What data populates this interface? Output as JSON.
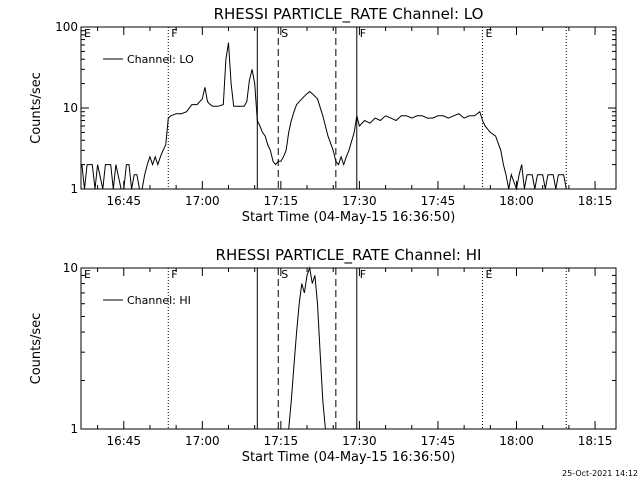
{
  "footer": {
    "timestamp": "25-Oct-2021 14:12"
  },
  "chart_data": [
    {
      "type": "line",
      "title": "RHESSI PARTICLE_RATE Channel: LO",
      "xlabel": "Start Time (04-May-15 16:36:50)",
      "ylabel": "Counts/sec",
      "y_scale": "log",
      "ylim": [
        1,
        100
      ],
      "y_ticks": [
        "1",
        "10",
        "100"
      ],
      "xlim": [
        "16:36:50",
        "18:19:00"
      ],
      "x_ticks": [
        "16:45",
        "17:00",
        "17:15",
        "17:30",
        "17:45",
        "18:00",
        "18:15"
      ],
      "legend": {
        "placement": "top-left",
        "entries": [
          "Channel: LO"
        ]
      },
      "markers": [
        {
          "time": "16:36:50",
          "label": "E",
          "style": "solid"
        },
        {
          "time": "16:53:30",
          "label": "F",
          "style": "dotted"
        },
        {
          "time": "17:10:30",
          "label": "",
          "style": "solid"
        },
        {
          "time": "17:14:30",
          "label": "S",
          "style": "dashed"
        },
        {
          "time": "17:25:30",
          "label": "",
          "style": "dashed"
        },
        {
          "time": "17:29:30",
          "label": "F",
          "style": "solid"
        },
        {
          "time": "17:53:30",
          "label": "E",
          "style": "dotted"
        },
        {
          "time": "18:09:30",
          "label": "",
          "style": "dotted"
        }
      ],
      "series": [
        {
          "name": "Channel: LO",
          "points": [
            [
              "16:37:00",
              2
            ],
            [
              "16:37:30",
              1
            ],
            [
              "16:38:00",
              2
            ],
            [
              "16:39:00",
              2
            ],
            [
              "16:39:30",
              1
            ],
            [
              "16:40:00",
              2
            ],
            [
              "16:41:00",
              1
            ],
            [
              "16:41:30",
              2
            ],
            [
              "16:42:30",
              2
            ],
            [
              "16:43:00",
              1
            ],
            [
              "16:43:30",
              2
            ],
            [
              "16:44:30",
              1
            ],
            [
              "16:45:00",
              1
            ],
            [
              "16:45:30",
              2
            ],
            [
              "16:46:00",
              2
            ],
            [
              "16:46:30",
              1
            ],
            [
              "16:47:00",
              1.5
            ],
            [
              "16:47:30",
              1.5
            ],
            [
              "16:48:00",
              1
            ],
            [
              "16:48:30",
              1
            ],
            [
              "16:49:00",
              1.5
            ],
            [
              "16:49:30",
              2
            ],
            [
              "16:50:00",
              2.5
            ],
            [
              "16:50:30",
              2
            ],
            [
              "16:51:00",
              2.5
            ],
            [
              "16:51:30",
              2
            ],
            [
              "16:52:00",
              2.5
            ],
            [
              "16:52:30",
              3
            ],
            [
              "16:53:00",
              3.5
            ],
            [
              "16:53:30",
              7.5
            ],
            [
              "16:54:00",
              8
            ],
            [
              "16:55:00",
              8.5
            ],
            [
              "16:56:00",
              8.5
            ],
            [
              "16:57:00",
              9
            ],
            [
              "16:58:00",
              11
            ],
            [
              "16:59:00",
              11
            ],
            [
              "17:00:00",
              13
            ],
            [
              "17:00:30",
              18
            ],
            [
              "17:01:00",
              12
            ],
            [
              "17:01:30",
              11
            ],
            [
              "17:02:00",
              10.5
            ],
            [
              "17:03:00",
              10.5
            ],
            [
              "17:04:00",
              11
            ],
            [
              "17:04:30",
              40
            ],
            [
              "17:05:00",
              64
            ],
            [
              "17:05:30",
              20
            ],
            [
              "17:06:00",
              10.5
            ],
            [
              "17:07:00",
              10.5
            ],
            [
              "17:08:00",
              10.5
            ],
            [
              "17:08:30",
              12
            ],
            [
              "17:09:00",
              22
            ],
            [
              "17:09:30",
              30
            ],
            [
              "17:10:00",
              20
            ],
            [
              "17:10:30",
              7
            ],
            [
              "17:11:00",
              6
            ],
            [
              "17:11:30",
              5
            ],
            [
              "17:12:00",
              4.5
            ],
            [
              "17:12:30",
              3.5
            ],
            [
              "17:13:00",
              3
            ],
            [
              "17:13:30",
              2.2
            ],
            [
              "17:14:00",
              2
            ],
            [
              "17:14:30",
              2.2
            ],
            [
              "17:15:00",
              2.2
            ],
            [
              "17:15:30",
              2.5
            ],
            [
              "17:16:00",
              3
            ],
            [
              "17:16:30",
              5
            ],
            [
              "17:17:00",
              7
            ],
            [
              "17:17:30",
              9
            ],
            [
              "17:18:00",
              11
            ],
            [
              "17:19:00",
              13
            ],
            [
              "17:20:00",
              15
            ],
            [
              "17:20:30",
              16
            ],
            [
              "17:21:00",
              15
            ],
            [
              "17:22:00",
              13
            ],
            [
              "17:23:00",
              8
            ],
            [
              "17:24:00",
              4.5
            ],
            [
              "17:25:00",
              3
            ],
            [
              "17:25:30",
              2.2
            ],
            [
              "17:26:00",
              2
            ],
            [
              "17:26:30",
              2.5
            ],
            [
              "17:27:00",
              2
            ],
            [
              "17:27:30",
              2.5
            ],
            [
              "17:28:00",
              3
            ],
            [
              "17:29:00",
              5
            ],
            [
              "17:29:30",
              8
            ],
            [
              "17:30:00",
              6
            ],
            [
              "17:31:00",
              7
            ],
            [
              "17:32:00",
              6.5
            ],
            [
              "17:33:00",
              7.5
            ],
            [
              "17:34:00",
              7
            ],
            [
              "17:35:00",
              8
            ],
            [
              "17:36:00",
              7.5
            ],
            [
              "17:37:00",
              7
            ],
            [
              "17:38:00",
              8
            ],
            [
              "17:39:00",
              8
            ],
            [
              "17:40:00",
              7.5
            ],
            [
              "17:41:00",
              8
            ],
            [
              "17:42:00",
              8
            ],
            [
              "17:43:00",
              7.5
            ],
            [
              "17:44:00",
              7.5
            ],
            [
              "17:45:00",
              8
            ],
            [
              "17:46:00",
              8
            ],
            [
              "17:47:00",
              7.5
            ],
            [
              "17:48:00",
              8
            ],
            [
              "17:49:00",
              8.5
            ],
            [
              "17:50:00",
              7.5
            ],
            [
              "17:51:00",
              8
            ],
            [
              "17:52:00",
              8
            ],
            [
              "17:53:00",
              9
            ],
            [
              "17:53:30",
              7
            ],
            [
              "17:54:00",
              6
            ],
            [
              "17:55:00",
              5
            ],
            [
              "17:56:00",
              4.5
            ],
            [
              "17:57:00",
              3
            ],
            [
              "17:57:30",
              2
            ],
            [
              "17:58:00",
              1.5
            ],
            [
              "17:58:30",
              1
            ],
            [
              "17:59:00",
              1.5
            ],
            [
              "18:00:00",
              1
            ],
            [
              "18:00:30",
              1.5
            ],
            [
              "18:01:00",
              2
            ],
            [
              "18:01:30",
              1
            ],
            [
              "18:02:00",
              1.5
            ],
            [
              "18:03:00",
              1.5
            ],
            [
              "18:03:30",
              1
            ],
            [
              "18:04:00",
              1.5
            ],
            [
              "18:05:00",
              1.5
            ],
            [
              "18:05:30",
              1
            ],
            [
              "18:06:00",
              1.5
            ],
            [
              "18:07:00",
              1.5
            ],
            [
              "18:07:30",
              1
            ],
            [
              "18:08:00",
              1.5
            ],
            [
              "18:09:00",
              1.5
            ],
            [
              "18:09:30",
              1
            ]
          ]
        }
      ]
    },
    {
      "type": "line",
      "title": "RHESSI PARTICLE_RATE Channel: HI",
      "xlabel": "Start Time (04-May-15 16:36:50)",
      "ylabel": "Counts/sec",
      "y_scale": "log",
      "ylim": [
        1,
        10
      ],
      "y_ticks": [
        "1",
        "10"
      ],
      "xlim": [
        "16:36:50",
        "18:19:00"
      ],
      "x_ticks": [
        "16:45",
        "17:00",
        "17:15",
        "17:30",
        "17:45",
        "18:00",
        "18:15"
      ],
      "legend": {
        "placement": "top-left",
        "entries": [
          "Channel: HI"
        ]
      },
      "markers": [
        {
          "time": "16:36:50",
          "label": "E",
          "style": "solid"
        },
        {
          "time": "16:53:30",
          "label": "F",
          "style": "dotted"
        },
        {
          "time": "17:10:30",
          "label": "",
          "style": "solid"
        },
        {
          "time": "17:14:30",
          "label": "S",
          "style": "dashed"
        },
        {
          "time": "17:25:30",
          "label": "",
          "style": "dashed"
        },
        {
          "time": "17:29:30",
          "label": "F",
          "style": "solid"
        },
        {
          "time": "17:53:30",
          "label": "E",
          "style": "dotted"
        },
        {
          "time": "18:09:30",
          "label": "",
          "style": "dotted"
        }
      ],
      "series": [
        {
          "name": "Channel: HI",
          "points": [
            [
              "17:16:30",
              1
            ],
            [
              "17:17:00",
              1.5
            ],
            [
              "17:17:30",
              2.5
            ],
            [
              "17:18:00",
              4
            ],
            [
              "17:18:30",
              6
            ],
            [
              "17:19:00",
              8
            ],
            [
              "17:19:30",
              7
            ],
            [
              "17:20:00",
              9
            ],
            [
              "17:20:30",
              10
            ],
            [
              "17:21:00",
              8
            ],
            [
              "17:21:30",
              9
            ],
            [
              "17:22:00",
              6
            ],
            [
              "17:22:30",
              3
            ],
            [
              "17:23:00",
              1.5
            ],
            [
              "17:23:30",
              1
            ]
          ]
        }
      ]
    }
  ]
}
